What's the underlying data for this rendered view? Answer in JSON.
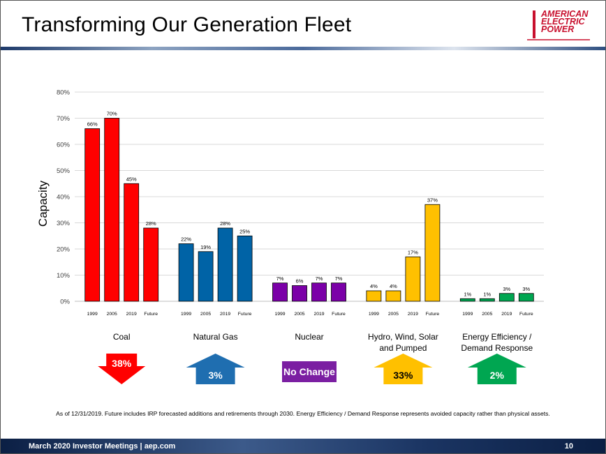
{
  "slide": {
    "title": "Transforming Our Generation Fleet",
    "logo": [
      "AMERICAN",
      "ELECTRIC",
      "POWER"
    ],
    "footnote": "As of 12/31/2019.  Future includes IRP forecasted additions and retirements through 2030.  Energy Efficiency / Demand Response represents avoided capacity rather than physical assets.",
    "footer_text": "March 2020 Investor Meetings   |   aep.com",
    "page_number": "10"
  },
  "chart_data": {
    "type": "bar",
    "ylabel": "Capacity",
    "ylim": [
      0,
      80
    ],
    "yticks": [
      "0%",
      "10%",
      "20%",
      "30%",
      "40%",
      "50%",
      "60%",
      "70%",
      "80%"
    ],
    "grid": true,
    "years": [
      "1999",
      "2005",
      "2019",
      "Future"
    ],
    "groups": [
      {
        "name": "Coal",
        "name_lines": [
          "Coal"
        ],
        "color": "#ff0000",
        "values": [
          66,
          70,
          45,
          28
        ],
        "labels": [
          "66%",
          "70%",
          "45%",
          "28%"
        ],
        "change": {
          "direction": "down",
          "label": "38%",
          "color": "#ff0000"
        }
      },
      {
        "name": "Natural Gas",
        "name_lines": [
          "Natural Gas"
        ],
        "color": "#0063a6",
        "values": [
          22,
          19,
          28,
          25
        ],
        "labels": [
          "22%",
          "19%",
          "28%",
          "25%"
        ],
        "change": {
          "direction": "up",
          "label": "3%",
          "color": "#1f6eb0"
        }
      },
      {
        "name": "Nuclear",
        "name_lines": [
          "Nuclear"
        ],
        "color": "#7b00a8",
        "values": [
          7,
          6,
          7,
          7
        ],
        "labels": [
          "7%",
          "6%",
          "7%",
          "7%"
        ],
        "change": {
          "direction": "none",
          "label": "No Change",
          "color": "#7b1fa2"
        }
      },
      {
        "name": "Hydro, Wind, Solar and Pumped",
        "name_lines": [
          "Hydro, Wind, Solar",
          "and Pumped"
        ],
        "color": "#ffc000",
        "values": [
          4,
          4,
          17,
          37
        ],
        "labels": [
          "4%",
          "4%",
          "17%",
          "37%"
        ],
        "change": {
          "direction": "up",
          "label": "33%",
          "color": "#ffc000"
        }
      },
      {
        "name": "Energy Efficiency / Demand Response",
        "name_lines": [
          "Energy Efficiency /",
          "Demand Response"
        ],
        "color": "#00a651",
        "values": [
          1,
          1,
          3,
          3
        ],
        "labels": [
          "1%",
          "1%",
          "3%",
          "3%"
        ],
        "change": {
          "direction": "up",
          "label": "2%",
          "color": "#00a651"
        }
      }
    ]
  }
}
